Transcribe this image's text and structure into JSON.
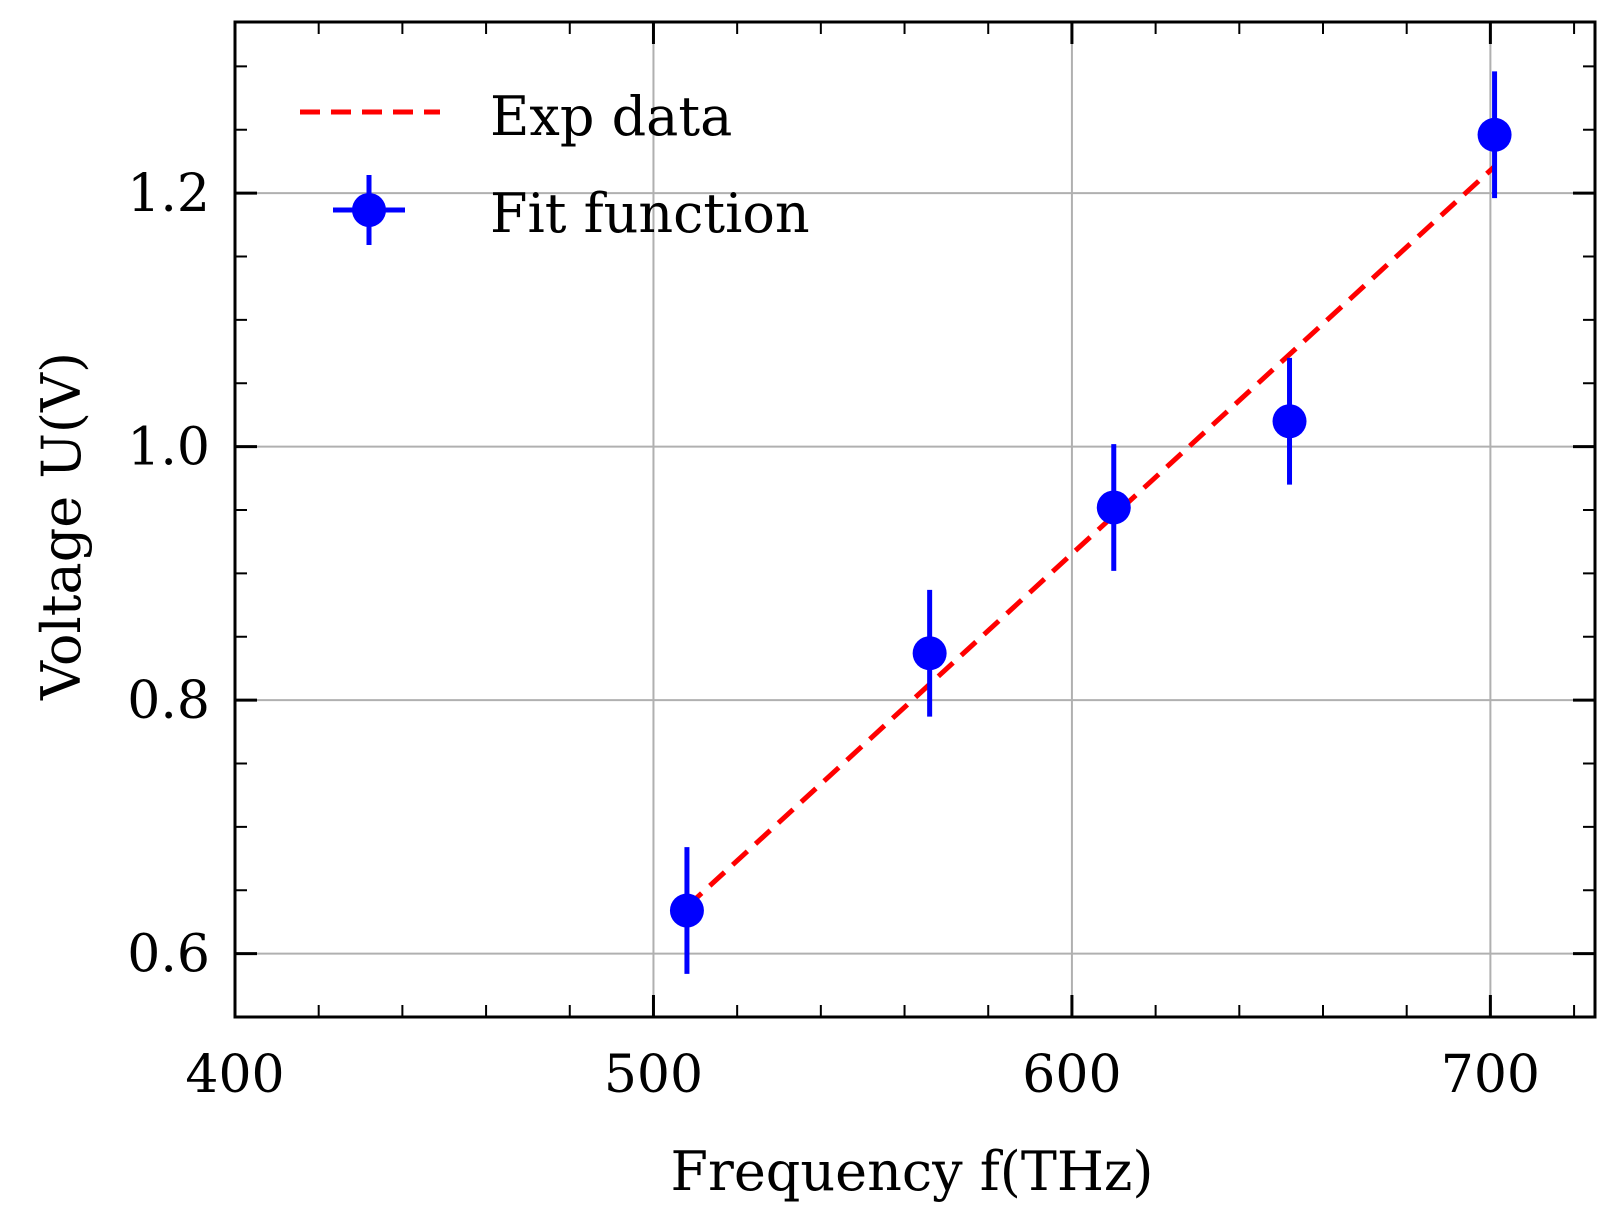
{
  "chart_data": {
    "type": "scatter",
    "title": "",
    "xlabel": "Frequency f(THz)",
    "ylabel": "Voltage U(V)",
    "xlim": [
      400,
      725
    ],
    "ylim": [
      0.55,
      1.335
    ],
    "x_ticks": [
      400,
      500,
      600,
      700
    ],
    "y_ticks": [
      0.6,
      0.8,
      1.0,
      1.2
    ],
    "x_tick_labels": [
      "400",
      "500",
      "600",
      "700"
    ],
    "y_tick_labels": [
      "0.6",
      "0.8",
      "1.0",
      "1.2"
    ],
    "grid": true,
    "legend_position": "top-left",
    "series": [
      {
        "name": "Exp data",
        "kind": "line",
        "style": "dashed",
        "color": "#ff0000",
        "x": [
          508,
          701
        ],
        "y": [
          0.637,
          1.221
        ]
      },
      {
        "name": "Fit function",
        "kind": "errorbar",
        "color": "#0000ff",
        "x": [
          508,
          566,
          610,
          652,
          701
        ],
        "y": [
          0.634,
          0.837,
          0.952,
          1.02,
          1.246
        ],
        "yerr": [
          0.05,
          0.05,
          0.05,
          0.05,
          0.05
        ]
      }
    ]
  }
}
